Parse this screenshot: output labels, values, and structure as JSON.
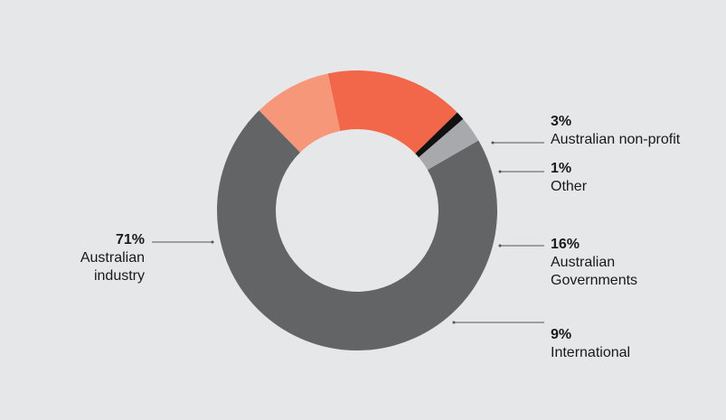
{
  "chart_data": {
    "type": "pie",
    "donut": true,
    "title": "",
    "slices": [
      {
        "value_label": "71%",
        "name_lines": [
          "Australian",
          "industry"
        ],
        "value": 71,
        "color": "#636466"
      },
      {
        "value_label": "9%",
        "name_lines": [
          "International"
        ],
        "value": 9,
        "color": "#f7977a"
      },
      {
        "value_label": "16%",
        "name_lines": [
          "Australian",
          "Governments"
        ],
        "value": 16,
        "color": "#f26649"
      },
      {
        "value_label": "1%",
        "name_lines": [
          "Other"
        ],
        "value": 1,
        "color": "#111111"
      },
      {
        "value_label": "3%",
        "name_lines": [
          "Australian non-profit"
        ],
        "value": 3,
        "color": "#a7a9ac"
      }
    ],
    "legend": "none",
    "label_placement": "leader-lines"
  },
  "colors": {
    "background": "#e6e7e8",
    "leader_line": "#555555",
    "text": "#1a1a1a"
  }
}
